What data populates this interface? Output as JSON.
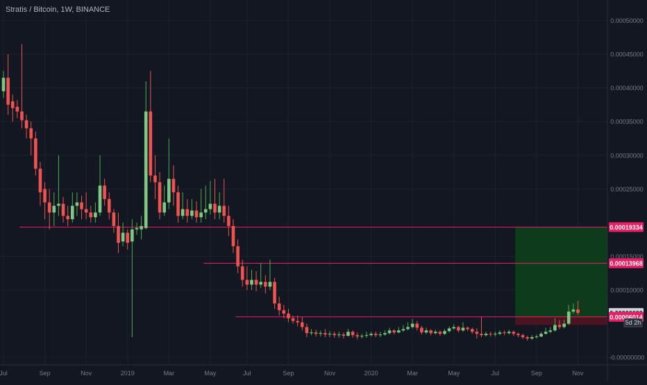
{
  "header": {
    "title": "Stratis / Bitcoin, 1W, BINANCE"
  },
  "colors": {
    "background": "#131722",
    "up": "#26a69a",
    "down": "#ef5350",
    "grid": "#1e2230",
    "axis_text": "#787b86",
    "level_line": "#e91e63",
    "profit_zone": "#0d3b1c",
    "loss_zone": "#4a1520"
  },
  "chart_data": {
    "type": "candlestick",
    "symbol": "Stratis / Bitcoin",
    "interval": "1W",
    "exchange": "BINANCE",
    "ylim": [
      -6e-06,
      0.000515
    ],
    "grid": true,
    "y_ticks": [
      {
        "value": 0.0005,
        "label": "0.00050000"
      },
      {
        "value": 0.00045,
        "label": "0.00045000"
      },
      {
        "value": 0.0004,
        "label": "0.00040000"
      },
      {
        "value": 0.00035,
        "label": "0.00035000"
      },
      {
        "value": 0.0003,
        "label": "0.00030000"
      },
      {
        "value": 0.00025,
        "label": "0.00025000"
      },
      {
        "value": 0.00015,
        "label": "0.00015000"
      },
      {
        "value": 0.0001,
        "label": "0.00010000"
      },
      {
        "value": 0.0,
        "label": "-0.00000000"
      }
    ],
    "x_ticks": [
      {
        "index": 0,
        "label": "Jul"
      },
      {
        "index": 9,
        "label": "Sep"
      },
      {
        "index": 18,
        "label": "Nov"
      },
      {
        "index": 27,
        "label": "2019"
      },
      {
        "index": 36,
        "label": "Mar"
      },
      {
        "index": 45,
        "label": "May"
      },
      {
        "index": 53,
        "label": "Jul"
      },
      {
        "index": 62,
        "label": "Sep"
      },
      {
        "index": 71,
        "label": "Nov"
      },
      {
        "index": 80,
        "label": "2020"
      },
      {
        "index": 89,
        "label": "Mar"
      },
      {
        "index": 98,
        "label": "May"
      },
      {
        "index": 107,
        "label": "Jul"
      },
      {
        "index": 116,
        "label": "Sep"
      },
      {
        "index": 125,
        "label": "Nov"
      }
    ],
    "price_labels": [
      {
        "value": 0.00019334,
        "label": "0.00019334",
        "color": "#e91e63"
      },
      {
        "value": 0.00013968,
        "label": "0.00013968",
        "color": "#e91e63"
      },
      {
        "value": 6.6e-05,
        "label": "0.00006600",
        "color": "#d1d4dc"
      },
      {
        "value": 6.014e-05,
        "label": "0.00006014",
        "color": "#e91e63"
      }
    ],
    "countdown": "5d 2h",
    "levels": [
      {
        "value": 0.00019334,
        "from_index": 2,
        "to_index": 127
      },
      {
        "value": 0.00013968,
        "from_index": 42,
        "to_index": 127
      },
      {
        "value": 6.014e-05,
        "from_index": 49,
        "to_index": 127
      }
    ],
    "position": {
      "entry": 6.014e-05,
      "target": 0.00019334,
      "stop": 4.8e-05,
      "from_index": 110,
      "to_index": 127
    },
    "candles": [
      [
        0.000395,
        0.000415,
        0.000425,
        0.000385
      ],
      [
        0.000415,
        0.000375,
        0.00045,
        0.00036
      ],
      [
        0.00038,
        0.00037,
        0.00039,
        0.00035
      ],
      [
        0.000372,
        0.000365,
        0.000382,
        0.000355
      ],
      [
        0.000365,
        0.000352,
        0.000465,
        0.00034
      ],
      [
        0.000352,
        0.00034,
        0.00036,
        0.000325
      ],
      [
        0.00034,
        0.000325,
        0.00035,
        0.0003
      ],
      [
        0.000325,
        0.00028,
        0.000335,
        0.00027
      ],
      [
        0.00028,
        0.000245,
        0.00029,
        0.000225
      ],
      [
        0.00025,
        0.00023,
        0.00026,
        0.000205
      ],
      [
        0.00023,
        0.000215,
        0.00025,
        0.00019
      ],
      [
        0.000215,
        0.000225,
        0.000245,
        0.000195
      ],
      [
        0.000225,
        0.000228,
        0.0003,
        0.00021
      ],
      [
        0.000228,
        0.00021,
        0.000238,
        0.0002
      ],
      [
        0.00021,
        0.000205,
        0.000225,
        0.000195
      ],
      [
        0.000205,
        0.000225,
        0.000245,
        0.0002
      ],
      [
        0.000225,
        0.00023,
        0.000245,
        0.00021
      ],
      [
        0.00023,
        0.00022,
        0.00024,
        0.000205
      ],
      [
        0.00022,
        0.000215,
        0.000245,
        0.000205
      ],
      [
        0.000215,
        0.000208,
        0.000225,
        0.0002
      ],
      [
        0.000208,
        0.000215,
        0.00023,
        0.0002
      ],
      [
        0.000215,
        0.000255,
        0.0003,
        0.00021
      ],
      [
        0.000255,
        0.000235,
        0.000265,
        0.000225
      ],
      [
        0.000235,
        0.000215,
        0.000245,
        0.000205
      ],
      [
        0.000215,
        0.000195,
        0.00022,
        0.000185
      ],
      [
        0.000195,
        0.00017,
        0.000215,
        0.000155
      ],
      [
        0.000172,
        0.000185,
        0.0002,
        0.000165
      ],
      [
        0.000185,
        0.00017,
        0.00019,
        0.00016
      ],
      [
        0.000172,
        0.00019,
        0.000205,
        3e-05
      ],
      [
        0.00019,
        0.000192,
        0.0002,
        0.000182
      ],
      [
        0.00019,
        0.000195,
        0.00021,
        0.000175
      ],
      [
        0.000192,
        0.000365,
        0.00041,
        0.00019
      ],
      [
        0.000365,
        0.00027,
        0.000425,
        0.00026
      ],
      [
        0.00027,
        0.00026,
        0.0003,
        0.000235
      ],
      [
        0.00026,
        0.000215,
        0.000275,
        0.000205
      ],
      [
        0.000215,
        0.00023,
        0.000255,
        0.00021
      ],
      [
        0.00023,
        0.000265,
        0.000325,
        0.00022
      ],
      [
        0.000265,
        0.000245,
        0.000285,
        0.000225
      ],
      [
        0.000245,
        0.00021,
        0.000255,
        0.0002
      ],
      [
        0.00021,
        0.00022,
        0.000245,
        0.000205
      ],
      [
        0.00022,
        0.00021,
        0.000235,
        0.0002
      ],
      [
        0.00021,
        0.000218,
        0.000235,
        0.000205
      ],
      [
        0.000218,
        0.000208,
        0.000232,
        0.0002
      ],
      [
        0.000208,
        0.000215,
        0.00025,
        0.0002
      ],
      [
        0.000215,
        0.00022,
        0.000255,
        0.000205
      ],
      [
        0.00022,
        0.000228,
        0.000262,
        0.000212
      ],
      [
        0.000228,
        0.000215,
        0.000265,
        0.000205
      ],
      [
        0.000215,
        0.000225,
        0.000245,
        0.000205
      ],
      [
        0.000225,
        0.00021,
        0.000265,
        0.0002
      ],
      [
        0.00021,
        0.000195,
        0.000225,
        0.00018
      ],
      [
        0.000195,
        0.000165,
        0.000205,
        0.000155
      ],
      [
        0.000165,
        0.000135,
        0.000175,
        0.000125
      ],
      [
        0.000135,
        0.000115,
        0.000145,
        0.000105
      ],
      [
        0.000115,
        0.000108,
        0.000135,
        0.0001
      ],
      [
        0.000108,
        0.000115,
        0.00013,
        0.0001
      ],
      [
        0.000115,
        0.000108,
        0.000128,
        9.8e-05
      ],
      [
        0.000108,
        0.000112,
        0.00014,
        0.000103
      ],
      [
        0.000112,
        0.000105,
        0.000122,
        9.5e-05
      ],
      [
        0.000105,
        0.000112,
        0.000145,
        0.0001
      ],
      [
        0.000112,
        8e-05,
        0.000118,
        7.2e-05
      ],
      [
        8e-05,
        7e-05,
        9e-05,
        6.2e-05
      ],
      [
        7e-05,
        6.5e-05,
        7.8e-05,
        5.8e-05
      ],
      [
        6.5e-05,
        5.8e-05,
        7.2e-05,
        5.2e-05
      ],
      [
        5.8e-05,
        5.4e-05,
        6.2e-05,
        5e-05
      ],
      [
        5.4e-05,
        5.2e-05,
        6.2e-05,
        4.6e-05
      ],
      [
        5.2e-05,
        4.5e-05,
        6e-05,
        4e-05
      ],
      [
        4.5e-05,
        3.6e-05,
        5e-05,
        3e-05
      ],
      [
        3.6e-05,
        3.7e-05,
        4.2e-05,
        3.3e-05
      ],
      [
        3.7e-05,
        3.5e-05,
        4.1e-05,
        3.1e-05
      ],
      [
        3.5e-05,
        3.6e-05,
        4e-05,
        3.1e-05
      ],
      [
        3.6e-05,
        3.4e-05,
        4.2e-05,
        3e-05
      ],
      [
        3.4e-05,
        3.5e-05,
        3.9e-05,
        3e-05
      ],
      [
        3.5e-05,
        3.3e-05,
        3.8e-05,
        2.9e-05
      ],
      [
        3.3e-05,
        3.4e-05,
        3.8e-05,
        2.9e-05
      ],
      [
        3.4e-05,
        3.2e-05,
        3.7e-05,
        2.8e-05
      ],
      [
        3.2e-05,
        3.8e-05,
        4.2e-05,
        3.1e-05
      ],
      [
        3.8e-05,
        3.3e-05,
        4e-05,
        2.9e-05
      ],
      [
        3.3e-05,
        3.1e-05,
        3.7e-05,
        2.7e-05
      ],
      [
        3.1e-05,
        3.2e-05,
        3.5e-05,
        2.8e-05
      ],
      [
        3.2e-05,
        3.3e-05,
        3.8e-05,
        2.9e-05
      ],
      [
        3.3e-05,
        3.5e-05,
        3.8e-05,
        3.1e-05
      ],
      [
        3.5e-05,
        3.3e-05,
        3.8e-05,
        3e-05
      ],
      [
        3.3e-05,
        3.4e-05,
        3.8e-05,
        3e-05
      ],
      [
        3.4e-05,
        3.6e-05,
        4e-05,
        3.2e-05
      ],
      [
        3.6e-05,
        4e-05,
        4.4e-05,
        3.4e-05
      ],
      [
        4e-05,
        3.7e-05,
        4.2e-05,
        3.4e-05
      ],
      [
        3.7e-05,
        4e-05,
        4.5e-05,
        3.6e-05
      ],
      [
        4e-05,
        4.2e-05,
        4.8e-05,
        3.8e-05
      ],
      [
        4.2e-05,
        4.5e-05,
        5.2e-05,
        4e-05
      ],
      [
        4.5e-05,
        5e-05,
        5.7e-05,
        4.3e-05
      ],
      [
        5e-05,
        4.4e-05,
        5.4e-05,
        4e-05
      ],
      [
        4.4e-05,
        3.7e-05,
        4.7e-05,
        3.4e-05
      ],
      [
        3.7e-05,
        4e-05,
        4.4e-05,
        3.5e-05
      ],
      [
        4e-05,
        3.6e-05,
        4.2e-05,
        3.3e-05
      ],
      [
        3.6e-05,
        3.8e-05,
        4.1e-05,
        3.4e-05
      ],
      [
        3.8e-05,
        3.5e-05,
        4e-05,
        3.2e-05
      ],
      [
        3.5e-05,
        3.9e-05,
        4.2e-05,
        3.3e-05
      ],
      [
        3.9e-05,
        4.3e-05,
        4.6e-05,
        3.7e-05
      ],
      [
        4.3e-05,
        4.5e-05,
        4.9e-05,
        4.1e-05
      ],
      [
        4.5e-05,
        4e-05,
        4.7e-05,
        3.7e-05
      ],
      [
        4e-05,
        4.4e-05,
        5.2e-05,
        3.8e-05
      ],
      [
        4.4e-05,
        4.2e-05,
        4.6e-05,
        3.9e-05
      ],
      [
        4.2e-05,
        3.8e-05,
        4.4e-05,
        3.5e-05
      ],
      [
        3.8e-05,
        3.5e-05,
        4.3e-05,
        2.8e-05
      ],
      [
        3.5e-05,
        3.3e-05,
        6e-05,
        3e-05
      ],
      [
        3.3e-05,
        3.5e-05,
        3.8e-05,
        3.1e-05
      ],
      [
        3.5e-05,
        3.4e-05,
        3.8e-05,
        3.1e-05
      ],
      [
        3.4e-05,
        3.5e-05,
        3.8e-05,
        3.1e-05
      ],
      [
        3.5e-05,
        3.7e-05,
        4e-05,
        3.3e-05
      ],
      [
        3.7e-05,
        3.6e-05,
        4e-05,
        3.3e-05
      ],
      [
        3.6e-05,
        3.8e-05,
        4.1e-05,
        3.4e-05
      ],
      [
        3.8e-05,
        3.5e-05,
        4e-05,
        3.2e-05
      ],
      [
        3.5e-05,
        3.3e-05,
        3.7e-05,
        3e-05
      ],
      [
        3.3e-05,
        3e-05,
        3.5e-05,
        2.7e-05
      ],
      [
        3e-05,
        2.8e-05,
        3.2e-05,
        2.5e-05
      ],
      [
        2.8e-05,
        3e-05,
        3.3e-05,
        2.6e-05
      ],
      [
        3e-05,
        3.1e-05,
        3.4e-05,
        2.8e-05
      ],
      [
        3.1e-05,
        3.5e-05,
        3.8e-05,
        3e-05
      ],
      [
        3.5e-05,
        3.8e-05,
        4.4e-05,
        3.4e-05
      ],
      [
        3.8e-05,
        4e-05,
        4.5e-05,
        3.6e-05
      ],
      [
        4e-05,
        4.8e-05,
        5.8e-05,
        3.8e-05
      ],
      [
        4.8e-05,
        4.5e-05,
        5.5e-05,
        4.2e-05
      ],
      [
        4.5e-05,
        5e-05,
        5.6e-05,
        4.3e-05
      ],
      [
        5e-05,
        6.8e-05,
        7.8e-05,
        4.8e-05
      ],
      [
        6.8e-05,
        7.1e-05,
        8e-05,
        6.5e-05
      ],
      [
        7.1e-05,
        6.6e-05,
        8.4e-05,
        6.3e-05
      ]
    ]
  }
}
